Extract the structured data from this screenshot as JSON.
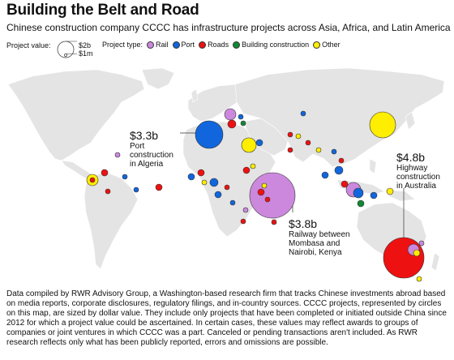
{
  "title": "Building the Belt and Road",
  "subtitle": "Chinese construction company CCCC has infrastructure projects across Asia, Africa, and Latin America",
  "legend": {
    "size_label": "Project value:",
    "size_values": [
      "$2b",
      "$1m"
    ],
    "type_label": "Project type:",
    "types": [
      {
        "label": "Rail",
        "color": "#cc88dd"
      },
      {
        "label": "Port",
        "color": "#1166dd"
      },
      {
        "label": "Roads",
        "color": "#ee1111"
      },
      {
        "label": "Building construction",
        "color": "#118833"
      },
      {
        "label": "Other",
        "color": "#ffee00"
      }
    ]
  },
  "callouts": {
    "algeria": {
      "amount": "$3.3b",
      "desc": "Port\nconstruction\nin Algeria"
    },
    "kenya": {
      "amount": "$3.8b",
      "desc": "Railway between\nMombasa and\nNairobi, Kenya"
    },
    "australia": {
      "amount": "$4.8b",
      "desc": "Highway\nconstruction\nin Australia"
    }
  },
  "footnote": "Data compiled by RWR Advisory Group, a Washington-based research firm that tracks Chinese investments abroad based on media reports, corporate disclosures, regulatory filings, and in-country sources. CCCC projects, represented by circles on this map, are sized by dollar value. They include only projects that have been completed or initiated outside China since 2012 for which a project value could be ascertained. In certain cases, these values may reflect awards to groups of companies or joint ventures in which CCCC was a part. Canceled or pending transactions aren't included. As RWR research reflects only what has been publicly reported, errors and omissions are possible.",
  "colors": {
    "land": "#e4e4e4",
    "bubble_stroke": "#333333"
  }
}
